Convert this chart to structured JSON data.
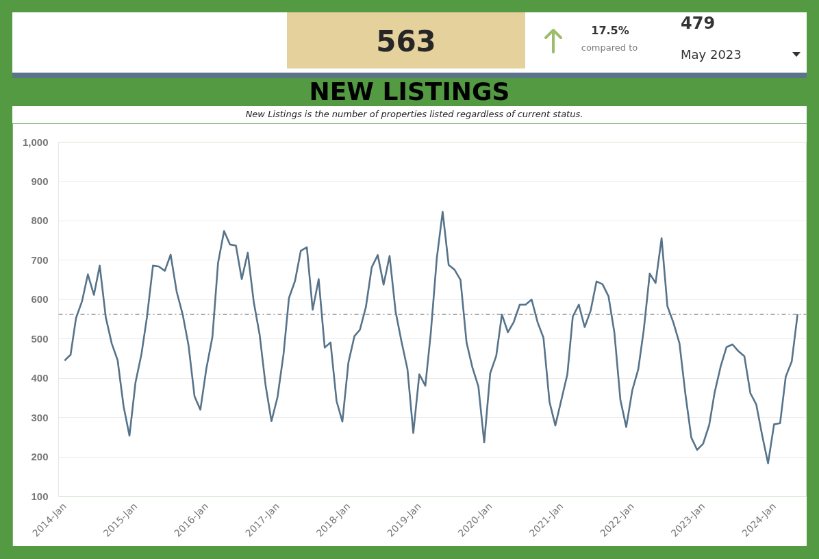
{
  "chart_data": {
    "type": "line",
    "title": "NEW LISTINGS",
    "subtitle": "New Listings is the number of properties listed regardless of current status.",
    "x": [
      "2014-01",
      "2014-02",
      "2014-03",
      "2014-04",
      "2014-05",
      "2014-06",
      "2014-07",
      "2014-08",
      "2014-09",
      "2014-10",
      "2014-11",
      "2014-12",
      "2015-01",
      "2015-02",
      "2015-03",
      "2015-04",
      "2015-05",
      "2015-06",
      "2015-07",
      "2015-08",
      "2015-09",
      "2015-10",
      "2015-11",
      "2015-12",
      "2016-01",
      "2016-02",
      "2016-03",
      "2016-04",
      "2016-05",
      "2016-06",
      "2016-07",
      "2016-08",
      "2016-09",
      "2016-10",
      "2016-11",
      "2016-12",
      "2017-01",
      "2017-02",
      "2017-03",
      "2017-04",
      "2017-05",
      "2017-06",
      "2017-07",
      "2017-08",
      "2017-09",
      "2017-10",
      "2017-11",
      "2017-12",
      "2018-01",
      "2018-02",
      "2018-03",
      "2018-04",
      "2018-05",
      "2018-06",
      "2018-07",
      "2018-08",
      "2018-09",
      "2018-10",
      "2018-11",
      "2018-12",
      "2019-01",
      "2019-02",
      "2019-03",
      "2019-04",
      "2019-05",
      "2019-06",
      "2019-07",
      "2019-08",
      "2019-09",
      "2019-10",
      "2019-11",
      "2019-12",
      "2020-01",
      "2020-02",
      "2020-03",
      "2020-04",
      "2020-05",
      "2020-06",
      "2020-07",
      "2020-08",
      "2020-09",
      "2020-10",
      "2020-11",
      "2020-12",
      "2021-01",
      "2021-02",
      "2021-03",
      "2021-04",
      "2021-05",
      "2021-06",
      "2021-07",
      "2021-08",
      "2021-09",
      "2021-10",
      "2021-11",
      "2021-12",
      "2022-01",
      "2022-02",
      "2022-03",
      "2022-04",
      "2022-05",
      "2022-06",
      "2022-07",
      "2022-08",
      "2022-09",
      "2022-10",
      "2022-11",
      "2022-12",
      "2023-01",
      "2023-02",
      "2023-03",
      "2023-04",
      "2023-05",
      "2023-06",
      "2023-07",
      "2023-08",
      "2023-09",
      "2023-10",
      "2023-11",
      "2023-12",
      "2024-01",
      "2024-02",
      "2024-03",
      "2024-04",
      "2024-05"
    ],
    "values": [
      445,
      460,
      553,
      596,
      664,
      612,
      686,
      555,
      488,
      446,
      328,
      254,
      389,
      462,
      555,
      686,
      684,
      673,
      714,
      620,
      562,
      484,
      354,
      320,
      425,
      505,
      693,
      774,
      740,
      737,
      652,
      719,
      593,
      511,
      381,
      291,
      352,
      461,
      604,
      647,
      724,
      733,
      574,
      652,
      478,
      491,
      342,
      290,
      440,
      507,
      523,
      581,
      682,
      713,
      638,
      711,
      569,
      494,
      423,
      261,
      410,
      381,
      515,
      705,
      823,
      688,
      676,
      650,
      491,
      428,
      379,
      237,
      413,
      457,
      562,
      517,
      543,
      587,
      587,
      600,
      542,
      503,
      340,
      280,
      345,
      410,
      557,
      587,
      530,
      572,
      646,
      639,
      608,
      516,
      345,
      276,
      369,
      423,
      522,
      666,
      642,
      756,
      583,
      541,
      489,
      362,
      249,
      218,
      234,
      281,
      364,
      430,
      479,
      486,
      469,
      456,
      362,
      334,
      254,
      184,
      283,
      286,
      404,
      443,
      563
    ],
    "color": "#56738a",
    "line_style": "solid",
    "xlim": [
      "2013-12-01",
      "2024-06-15"
    ],
    "xticks": [
      {
        "value": "2014-01",
        "label": "2014-Jan"
      },
      {
        "value": "2015-01",
        "label": "2015-Jan"
      },
      {
        "value": "2016-01",
        "label": "2016-Jan"
      },
      {
        "value": "2017-01",
        "label": "2017-Jan"
      },
      {
        "value": "2018-01",
        "label": "2018-Jan"
      },
      {
        "value": "2019-01",
        "label": "2019-Jan"
      },
      {
        "value": "2020-01",
        "label": "2020-Jan"
      },
      {
        "value": "2021-01",
        "label": "2021-Jan"
      },
      {
        "value": "2022-01",
        "label": "2022-Jan"
      },
      {
        "value": "2023-01",
        "label": "2023-Jan"
      },
      {
        "value": "2024-01",
        "label": "2024-Jan"
      }
    ],
    "ylim": [
      100,
      1000
    ],
    "yticks": [
      100,
      200,
      300,
      400,
      500,
      600,
      700,
      800,
      900,
      {
        "value": 1000,
        "label": "1,000"
      }
    ],
    "grid": "y",
    "ref_lines": [
      {
        "axis": "y",
        "value": 563,
        "color": "#6b6b6b",
        "line_style": "dashdot"
      }
    ],
    "annotations": [
      "563",
      "17.5%",
      "compared to",
      "479",
      "May 2023"
    ]
  }
}
